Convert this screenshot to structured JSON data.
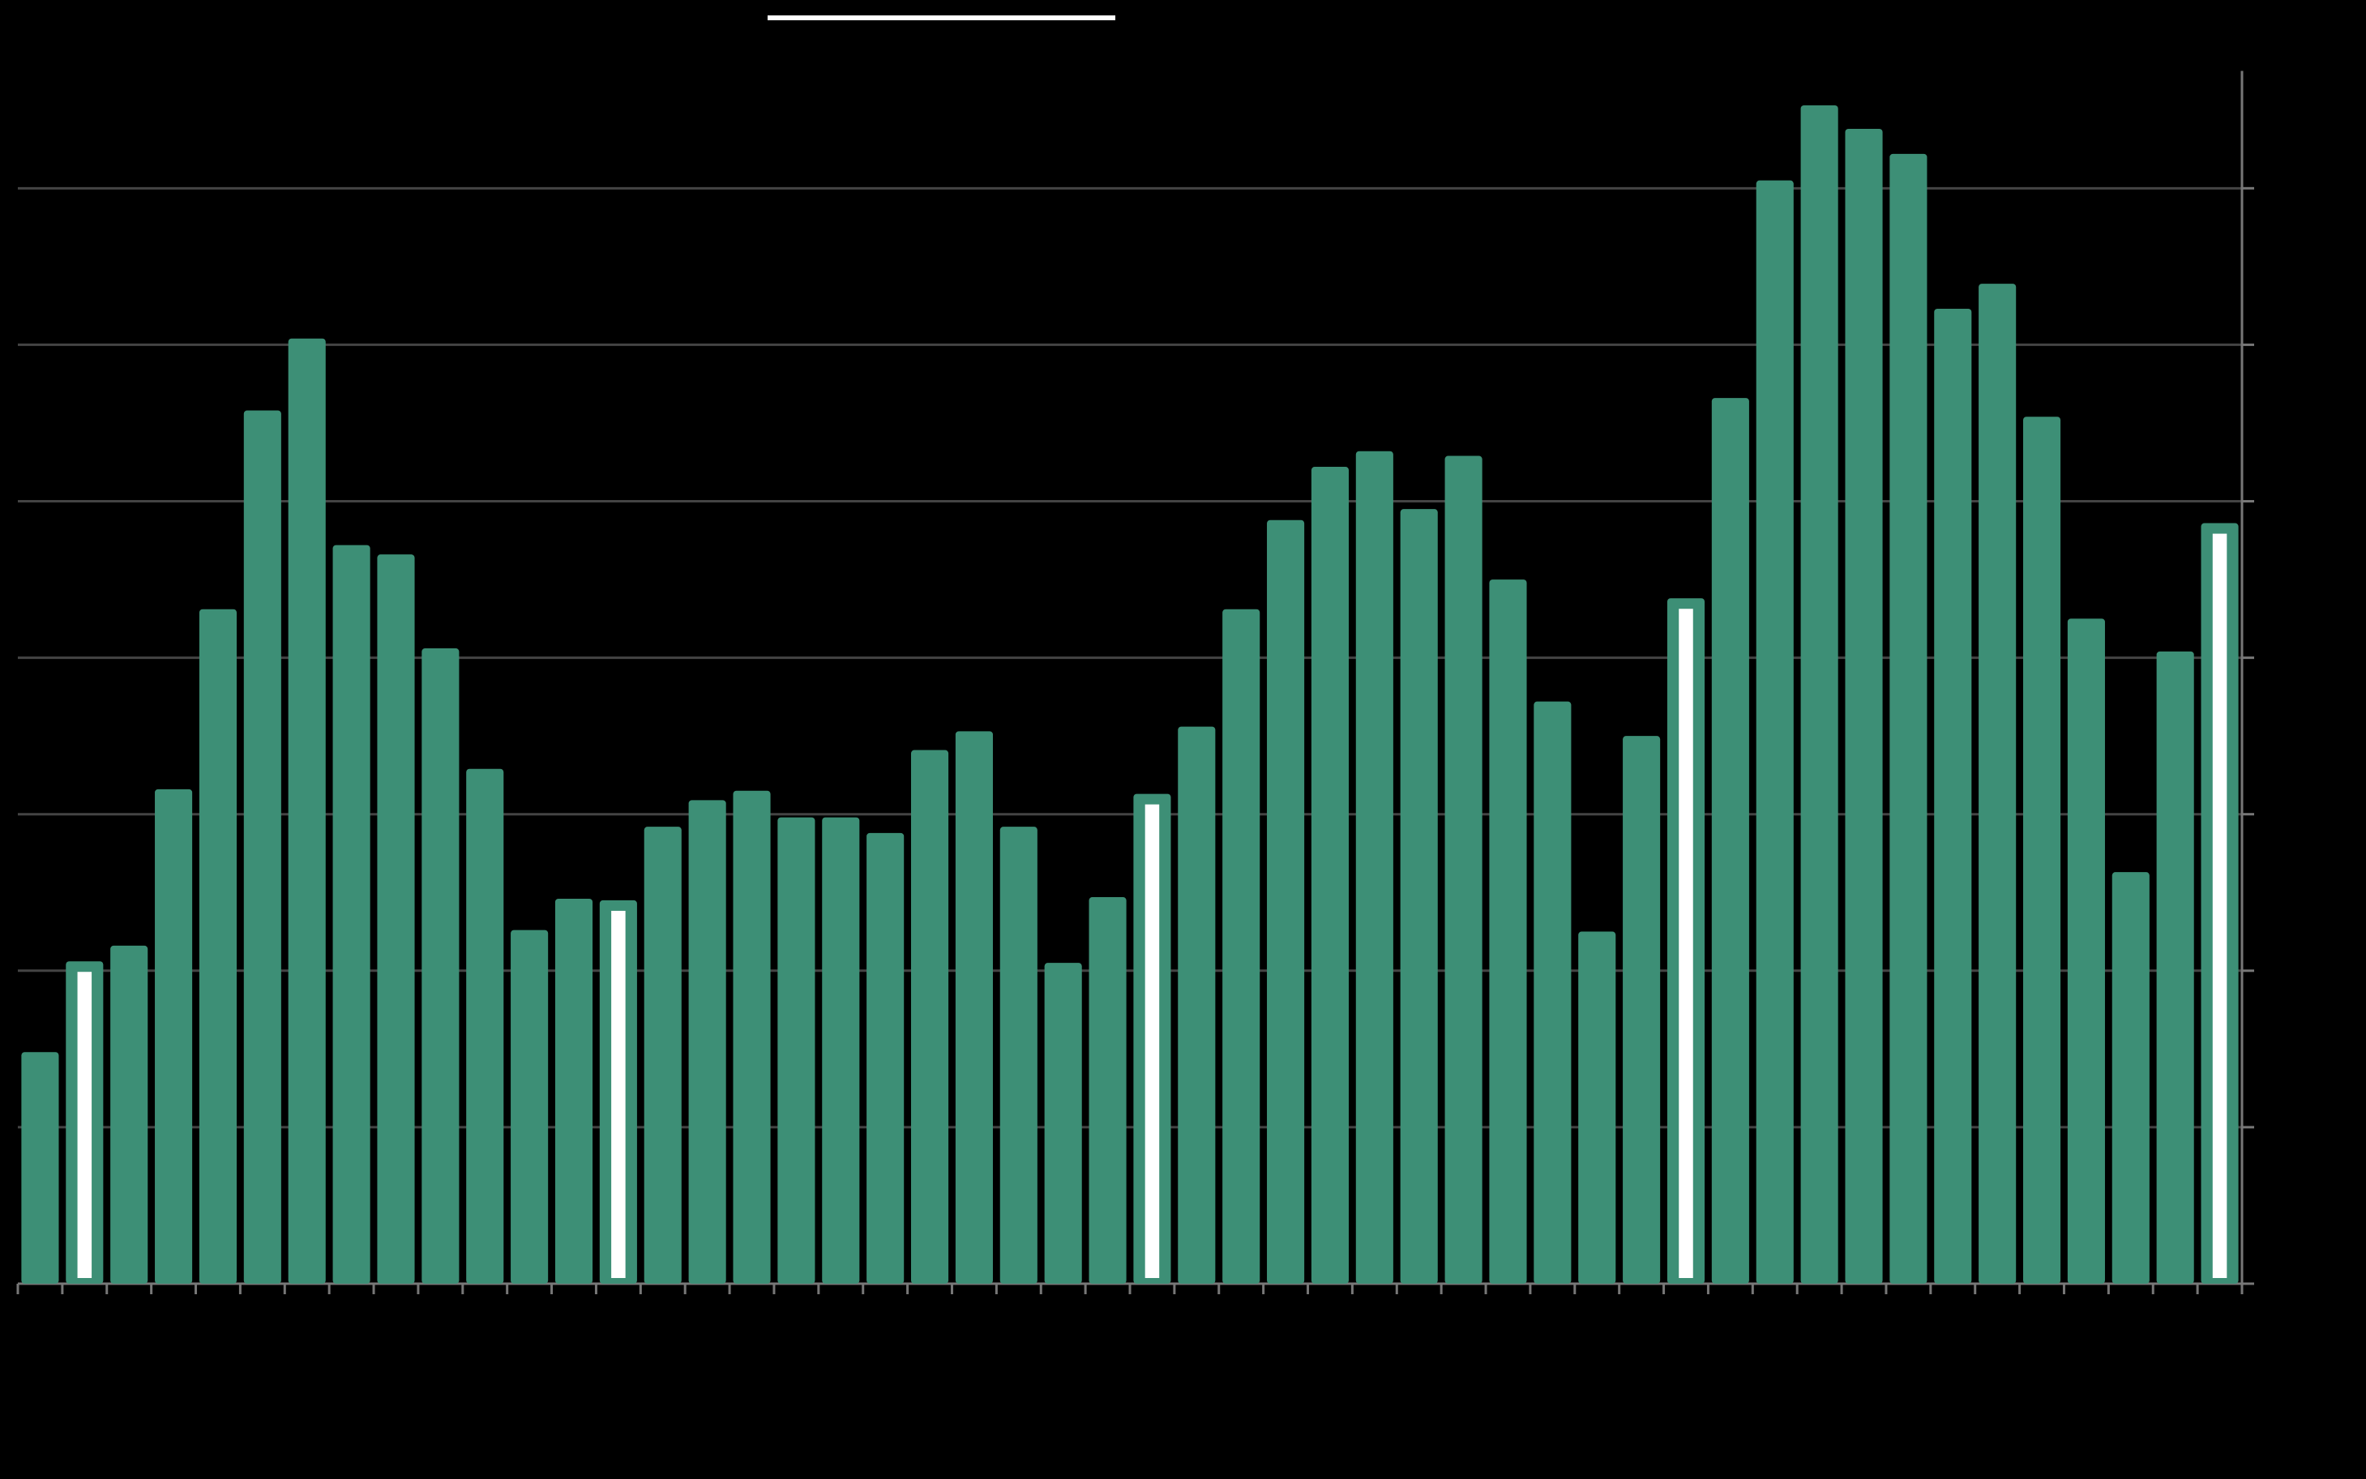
{
  "chart_data": {
    "type": "bar",
    "categories": [
      null,
      null,
      null,
      null,
      null,
      null,
      null,
      null,
      null,
      null,
      null,
      null,
      null,
      null,
      null,
      null,
      null,
      null,
      null,
      null,
      null,
      null,
      null,
      null,
      null,
      null,
      null,
      null,
      null,
      null,
      null,
      null,
      null,
      null,
      null,
      null,
      null,
      null,
      null,
      null,
      null,
      null,
      null,
      null,
      null,
      null,
      null,
      null,
      null,
      null
    ],
    "values": [
      1.48,
      2.06,
      2.16,
      3.16,
      4.31,
      5.58,
      6.04,
      4.72,
      4.66,
      4.06,
      3.29,
      2.26,
      2.46,
      2.45,
      2.92,
      3.09,
      3.15,
      2.98,
      2.98,
      2.88,
      3.41,
      3.53,
      2.92,
      2.05,
      2.47,
      3.13,
      3.56,
      4.31,
      4.88,
      5.22,
      5.32,
      4.95,
      5.29,
      4.5,
      3.72,
      2.25,
      3.5,
      4.38,
      5.66,
      7.05,
      7.53,
      7.38,
      7.22,
      6.23,
      6.39,
      5.54,
      4.25,
      2.63,
      4.04,
      4.86
    ],
    "color": "#3d8f76",
    "highlight_color": "#ffffff",
    "highlight_indices": [
      1,
      13,
      25,
      37,
      49
    ],
    "ylim": [
      0,
      7.75
    ],
    "yticks": [
      0,
      1,
      2,
      3,
      4,
      5,
      6,
      7
    ],
    "grid": true
  }
}
